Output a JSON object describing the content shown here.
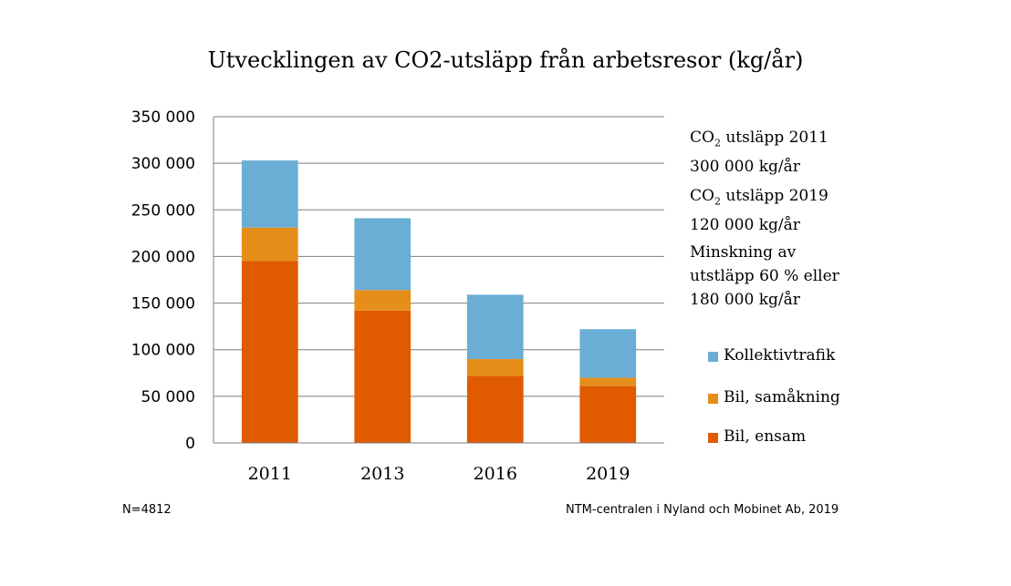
{
  "chart_data": {
    "type": "bar",
    "stacked": true,
    "title": "Utvecklingen av CO2-utsläpp från arbetsresor (kg/år)",
    "categories": [
      "2011",
      "2013",
      "2016",
      "2019"
    ],
    "series": [
      {
        "name": "Bil, ensam",
        "color": "#e05a00",
        "values": [
          195000,
          142000,
          72000,
          61000
        ]
      },
      {
        "name": "Bil, samåkning",
        "color": "#e58e1a",
        "values": [
          36000,
          22000,
          18000,
          9000
        ]
      },
      {
        "name": "Kollektivtrafik",
        "color": "#6aaed6",
        "values": [
          72000,
          77000,
          69000,
          52000
        ]
      }
    ],
    "ylim": [
      0,
      350000
    ],
    "yticks": [
      "0",
      "50 000",
      "100 000",
      "150 000",
      "200 000",
      "250 000",
      "300 000",
      "350 000"
    ],
    "grid": true,
    "legend": "right"
  },
  "info": {
    "block1_line1_prefix": "CO",
    "block1_line1_sub": "2",
    "block1_line1_suffix": " utsläpp 2011",
    "block1_line2": "300 000 kg/år",
    "block2_line1_prefix": "CO",
    "block2_line1_sub": "2",
    "block2_line1_suffix": " utsläpp 2019",
    "block2_line2": "120 000 kg/år",
    "block3_line1": "Minskning av",
    "block3_line2": "utstläpp 60 % eller",
    "block3_line3": "180 000 kg/år"
  },
  "footer": {
    "sample_size": "N=4812",
    "source": "NTM-centralen i Nyland och Mobinet Ab, 2019"
  }
}
